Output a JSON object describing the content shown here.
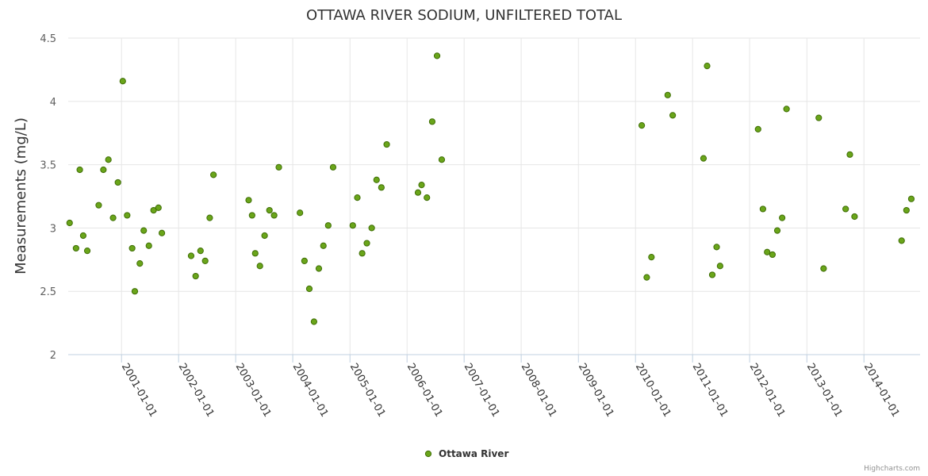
{
  "chart_data": {
    "type": "scatter",
    "title": "OTTAWA RIVER SODIUM, UNFILTERED TOTAL",
    "ylabel": "Measurements (mg/L)",
    "xlabel": "",
    "ylim": [
      2,
      4.5
    ],
    "xlim": [
      "2000-01-26",
      "2014-12-26"
    ],
    "y_ticks": [
      {
        "value": 2,
        "label": "2"
      },
      {
        "value": 2.5,
        "label": "2.5"
      },
      {
        "value": 3,
        "label": "3"
      },
      {
        "value": 3.5,
        "label": "3.5"
      },
      {
        "value": 4,
        "label": "4"
      },
      {
        "value": 4.5,
        "label": "4.5"
      }
    ],
    "x_ticks": [
      {
        "value": "2001-01-01",
        "label": "2001-01-01"
      },
      {
        "value": "2002-01-01",
        "label": "2002-01-01"
      },
      {
        "value": "2003-01-01",
        "label": "2003-01-01"
      },
      {
        "value": "2004-01-01",
        "label": "2004-01-01"
      },
      {
        "value": "2005-01-01",
        "label": "2005-01-01"
      },
      {
        "value": "2006-01-01",
        "label": "2006-01-01"
      },
      {
        "value": "2007-01-01",
        "label": "2007-01-01"
      },
      {
        "value": "2008-01-01",
        "label": "2008-01-01"
      },
      {
        "value": "2009-01-01",
        "label": "2009-01-01"
      },
      {
        "value": "2010-01-01",
        "label": "2010-01-01"
      },
      {
        "value": "2011-01-01",
        "label": "2011-01-01"
      },
      {
        "value": "2012-01-01",
        "label": "2012-01-01"
      },
      {
        "value": "2013-01-01",
        "label": "2013-01-01"
      },
      {
        "value": "2014-01-01",
        "label": "2014-01-01"
      }
    ],
    "grid": true,
    "legend_position": "bottom-center",
    "series": [
      {
        "name": "Ottawa River",
        "color": "#6aa51a",
        "border_color": "#3f6e06",
        "points": [
          [
            "2000-02-04",
            3.04
          ],
          [
            "2000-03-16",
            2.84
          ],
          [
            "2000-04-09",
            3.46
          ],
          [
            "2000-05-01",
            2.94
          ],
          [
            "2000-05-27",
            2.82
          ],
          [
            "2000-08-08",
            3.18
          ],
          [
            "2000-09-07",
            3.46
          ],
          [
            "2000-10-09",
            3.54
          ],
          [
            "2000-11-08",
            3.08
          ],
          [
            "2000-12-09",
            3.36
          ],
          [
            "2001-01-09",
            4.16
          ],
          [
            "2001-02-06",
            3.1
          ],
          [
            "2001-03-10",
            2.84
          ],
          [
            "2001-03-27",
            2.5
          ],
          [
            "2001-04-28",
            2.72
          ],
          [
            "2001-05-23",
            2.98
          ],
          [
            "2001-06-25",
            2.86
          ],
          [
            "2001-07-25",
            3.14
          ],
          [
            "2001-08-25",
            3.16
          ],
          [
            "2001-09-16",
            2.96
          ],
          [
            "2002-03-22",
            2.78
          ],
          [
            "2002-04-20",
            2.62
          ],
          [
            "2002-05-21",
            2.82
          ],
          [
            "2002-06-20",
            2.74
          ],
          [
            "2002-07-19",
            3.08
          ],
          [
            "2002-08-12",
            3.42
          ],
          [
            "2003-03-25",
            3.22
          ],
          [
            "2003-04-16",
            3.1
          ],
          [
            "2003-05-06",
            2.8
          ],
          [
            "2003-06-05",
            2.7
          ],
          [
            "2003-07-05",
            2.94
          ],
          [
            "2003-08-05",
            3.14
          ],
          [
            "2003-09-04",
            3.1
          ],
          [
            "2003-10-04",
            3.48
          ],
          [
            "2004-02-16",
            3.12
          ],
          [
            "2004-03-16",
            2.74
          ],
          [
            "2004-04-16",
            2.52
          ],
          [
            "2004-05-16",
            2.26
          ],
          [
            "2004-06-16",
            2.68
          ],
          [
            "2004-07-15",
            2.86
          ],
          [
            "2004-08-15",
            3.02
          ],
          [
            "2004-09-15",
            3.48
          ],
          [
            "2005-01-19",
            3.02
          ],
          [
            "2005-02-17",
            3.24
          ],
          [
            "2005-03-20",
            2.8
          ],
          [
            "2005-04-19",
            2.88
          ],
          [
            "2005-05-20",
            3.0
          ],
          [
            "2005-06-20",
            3.38
          ],
          [
            "2005-07-21",
            3.32
          ],
          [
            "2005-08-24",
            3.66
          ],
          [
            "2006-03-12",
            3.28
          ],
          [
            "2006-04-04",
            3.34
          ],
          [
            "2006-05-08",
            3.24
          ],
          [
            "2006-06-11",
            3.84
          ],
          [
            "2006-07-12",
            4.36
          ],
          [
            "2006-08-11",
            3.54
          ],
          [
            "2010-02-10",
            3.81
          ],
          [
            "2010-03-14",
            2.61
          ],
          [
            "2010-04-13",
            2.77
          ],
          [
            "2010-07-26",
            4.05
          ],
          [
            "2010-08-27",
            3.89
          ],
          [
            "2011-03-12",
            3.55
          ],
          [
            "2011-04-04",
            4.28
          ],
          [
            "2011-05-07",
            2.63
          ],
          [
            "2011-06-04",
            2.85
          ],
          [
            "2011-06-26",
            2.7
          ],
          [
            "2012-02-24",
            3.78
          ],
          [
            "2012-03-26",
            3.15
          ],
          [
            "2012-04-22",
            2.81
          ],
          [
            "2012-05-26",
            2.79
          ],
          [
            "2012-06-26",
            2.98
          ],
          [
            "2012-07-27",
            3.08
          ],
          [
            "2012-08-24",
            3.94
          ],
          [
            "2013-03-18",
            3.87
          ],
          [
            "2013-04-18",
            2.68
          ],
          [
            "2013-09-06",
            3.15
          ],
          [
            "2013-10-03",
            3.58
          ],
          [
            "2013-11-02",
            3.09
          ],
          [
            "2014-08-30",
            2.9
          ],
          [
            "2014-09-30",
            3.14
          ],
          [
            "2014-10-31",
            3.23
          ]
        ]
      }
    ]
  },
  "credits": "Highcharts.com"
}
